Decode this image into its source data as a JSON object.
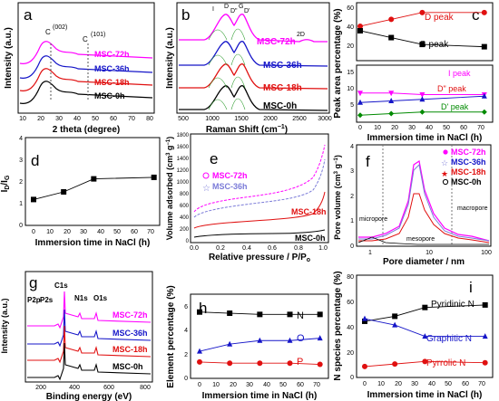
{
  "figure": {
    "panels": {
      "a": {
        "letter": "a",
        "xlabel": "2 theta (degree)",
        "ylabel": "Intensity (a.u.)",
        "xticks": [
          "10",
          "20",
          "30",
          "40",
          "50",
          "60",
          "70",
          "80"
        ],
        "peaks": [
          "C",
          "(002)",
          "C",
          "(101)"
        ],
        "series": [
          "MSC-72h",
          "MSC-36h",
          "MSC-18h",
          "MSC-0h"
        ]
      },
      "b": {
        "letter": "b",
        "xlabel": "Raman Shift (cm",
        "xlabel_sup": "−1",
        "xlabel_end": ")",
        "ylabel": "Intensity (a.u.)",
        "xticks": [
          "500",
          "1000",
          "1500",
          "2000",
          "2500",
          "3000"
        ],
        "bands": [
          "I",
          "D",
          "D\"",
          "G",
          "D'",
          "2D"
        ],
        "series": [
          "MSC-72h",
          "MSC-36h",
          "MSC-18h",
          "MSC-0h"
        ]
      },
      "c": {
        "letter": "c",
        "xlabel": "Immersion time in NaCl (h)",
        "ylabel": "Peak area percentage (%)",
        "xticks": [
          "0",
          "10",
          "20",
          "30",
          "40",
          "50",
          "60",
          "70"
        ],
        "yticks_top": [
          "20",
          "40",
          "60"
        ],
        "yticks_bottom": [
          "5",
          "10",
          "15"
        ],
        "labels": {
          "d": "D peak",
          "g": "G peak",
          "i": "I peak",
          "ddd": "D\" peak",
          "dp": "D' peak"
        }
      },
      "d": {
        "letter": "d",
        "xlabel": "Immersion time in NaCl (h)",
        "ylabel_main": "I",
        "ylabel_sub1": "D",
        "ylabel_sep": "/I",
        "ylabel_sub2": "G",
        "xticks": [
          "0",
          "10",
          "20",
          "30",
          "40",
          "50",
          "60",
          "70"
        ],
        "yticks": [
          "0",
          "1",
          "2",
          "3",
          "4"
        ]
      },
      "e": {
        "letter": "e",
        "xlabel": "Relative pressure / P/P",
        "xlabel_sub": "o",
        "ylabel": "Volume adsorbed (cm",
        "ylabel_sup1": "3",
        "ylabel_mid": " g",
        "ylabel_sup2": "−1",
        "ylabel_end": ")",
        "xticks": [
          "0.0",
          "0.2",
          "0.4",
          "0.6",
          "0.8",
          "1.0"
        ],
        "yticks": [
          "0",
          "200",
          "400",
          "600",
          "800",
          "1000",
          "1200",
          "1400",
          "1600",
          "1800"
        ],
        "series": [
          "MSC-72h",
          "MSC-36h",
          "MSC-18h",
          "MSC-0h"
        ]
      },
      "f": {
        "letter": "f",
        "xlabel": "Pore diameter / nm",
        "ylabel": "Pore volume (cm",
        "ylabel_sup1": "3",
        "ylabel_mid": " g",
        "ylabel_sup2": "−1",
        "ylabel_end": ")",
        "xticks": [
          "1",
          "10",
          "100"
        ],
        "yticks": [
          "0",
          "1",
          "2",
          "3",
          "4"
        ],
        "regions": [
          "micropore",
          "mesopore",
          "macropore"
        ],
        "series": [
          "MSC-72h",
          "MSC-36h",
          "MSC-18h",
          "MSC-0h"
        ]
      },
      "g": {
        "letter": "g",
        "xlabel": "Binding energy (eV)",
        "ylabel": "Intensity (a.u.)",
        "xticks": [
          "200",
          "400",
          "600",
          "800"
        ],
        "peaks": [
          "P2p",
          "P2s",
          "C1s",
          "N1s",
          "O1s"
        ],
        "series": [
          "MSC-72h",
          "MSC-36h",
          "MSC-18h",
          "MSC-0h"
        ]
      },
      "h": {
        "letter": "h",
        "xlabel": "Immersion time in NaCl (h)",
        "ylabel": "Element percentage (%)",
        "xticks": [
          "0",
          "10",
          "20",
          "30",
          "40",
          "50",
          "60",
          "70"
        ],
        "yticks": [
          "0",
          "2",
          "4",
          "6"
        ],
        "labels": [
          "N",
          "O",
          "P"
        ]
      },
      "i": {
        "letter": "i",
        "xlabel": "Immersion time in NaCl (h)",
        "ylabel": "N species percentage (%)",
        "xticks": [
          "0",
          "10",
          "20",
          "30",
          "40",
          "50",
          "60",
          "70"
        ],
        "yticks": [
          "0",
          "20",
          "40",
          "60",
          "80"
        ],
        "labels": [
          "Pyridinic N",
          "Graphitic N",
          "Pyrrolic N"
        ]
      }
    },
    "colors": {
      "s72": "#ff00ff",
      "s36": "#1515c8",
      "s18": "#e01010",
      "s0": "#000000",
      "green": "#008a00"
    }
  },
  "chart_data": [
    {
      "type": "line",
      "panel": "c",
      "x": [
        0,
        18,
        36,
        72
      ],
      "series": [
        {
          "name": "D peak",
          "values": [
            41,
            47,
            53,
            53
          ]
        },
        {
          "name": "G peak",
          "values": [
            37,
            31,
            25,
            23
          ]
        },
        {
          "name": "I peak",
          "values": [
            9.5,
            9.5,
            9.0,
            9.0
          ]
        },
        {
          "name": "D\" peak",
          "values": [
            6.5,
            7.0,
            7.5,
            8.5
          ]
        },
        {
          "name": "D' peak",
          "values": [
            2.5,
            3.0,
            3.5,
            3.5
          ]
        }
      ]
    },
    {
      "type": "line",
      "panel": "d",
      "x": [
        0,
        18,
        36,
        72
      ],
      "series": [
        {
          "values": [
            1.15,
            1.5,
            2.1,
            2.17
          ]
        }
      ],
      "ylim": [
        0,
        4
      ],
      "xlim": [
        -5,
        75
      ]
    },
    {
      "type": "line",
      "panel": "h",
      "x": [
        0,
        18,
        36,
        54,
        72
      ],
      "series": [
        {
          "name": "N",
          "values": [
            5.5,
            5.4,
            5.3,
            5.3,
            5.3
          ]
        },
        {
          "name": "O",
          "values": [
            2.2,
            2.8,
            3.1,
            3.1,
            3.3
          ]
        },
        {
          "name": "P",
          "values": [
            1.3,
            1.2,
            1.2,
            1.2,
            1.1
          ]
        }
      ],
      "ylim": [
        0,
        7
      ]
    },
    {
      "type": "line",
      "panel": "i",
      "x": [
        0,
        18,
        36,
        72
      ],
      "series": [
        {
          "name": "Pyridinic N",
          "values": [
            44,
            48,
            55,
            57
          ]
        },
        {
          "name": "Graphitic N",
          "values": [
            46,
            41,
            32,
            32
          ]
        },
        {
          "name": "Pyrrolic N",
          "values": [
            8,
            10,
            12,
            11
          ]
        }
      ],
      "ylim": [
        0,
        80
      ]
    }
  ]
}
